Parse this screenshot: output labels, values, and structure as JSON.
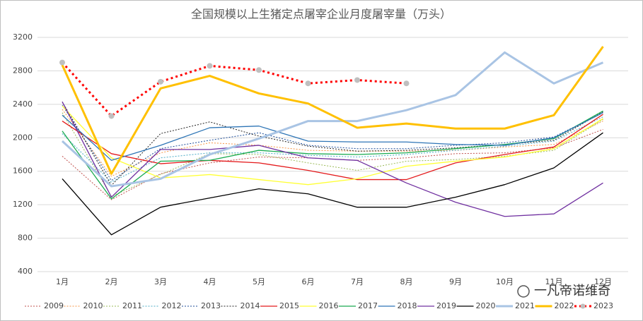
{
  "chart_data": {
    "type": "line",
    "title": "全国规模以上生猪定点屠宰企业月度屠宰量（万头）",
    "watermark": "一凡帝诺维奇",
    "categories": [
      "1月",
      "2月",
      "3月",
      "4月",
      "5月",
      "6月",
      "7月",
      "8月",
      "9月",
      "10月",
      "11月",
      "12月"
    ],
    "ylim": [
      400,
      3200
    ],
    "yticks": [
      400,
      800,
      1200,
      1600,
      2000,
      2400,
      2800,
      3200
    ],
    "grid": true,
    "legend": "bottom",
    "series": [
      {
        "name": "2009",
        "color": "#c0504d",
        "dash": true,
        "width": 1,
        "values": [
          1780,
          1260,
          1570,
          1700,
          1770,
          1760,
          1730,
          1760,
          1810,
          1820,
          1880,
          2100
        ]
      },
      {
        "name": "2010",
        "color": "#f79646",
        "dash": true,
        "width": 1,
        "values": [
          2340,
          1540,
          1820,
          1940,
          1910,
          1850,
          1840,
          1840,
          1850,
          1890,
          1920,
          2200
        ]
      },
      {
        "name": "2011",
        "color": "#9bbb59",
        "dash": true,
        "width": 1,
        "values": [
          2300,
          1300,
          1560,
          1810,
          1800,
          1700,
          1610,
          1720,
          1740,
          1780,
          1850,
          2220
        ]
      },
      {
        "name": "2012",
        "color": "#4bacc6",
        "dash": true,
        "width": 1,
        "values": [
          2050,
          1470,
          1760,
          1820,
          1820,
          1790,
          1770,
          1800,
          1850,
          1900,
          1960,
          2250
        ]
      },
      {
        "name": "2013",
        "color": "#1f4e9a",
        "dash": true,
        "width": 1,
        "values": [
          2390,
          1490,
          1870,
          1970,
          2060,
          1910,
          1870,
          1870,
          1910,
          1940,
          2010,
          2300
        ]
      },
      {
        "name": "2014",
        "color": "#222222",
        "dash": true,
        "width": 1,
        "values": [
          2430,
          1430,
          2050,
          2190,
          2020,
          1900,
          1840,
          1850,
          1880,
          1920,
          1970,
          2310
        ]
      },
      {
        "name": "2015",
        "color": "#e41a1c",
        "dash": false,
        "width": 1.3,
        "values": [
          2200,
          1810,
          1690,
          1730,
          1700,
          1610,
          1500,
          1500,
          1700,
          1800,
          1890,
          2280
        ]
      },
      {
        "name": "2016",
        "color": "#ffff33",
        "dash": false,
        "width": 1.3,
        "values": [
          2380,
          1760,
          1520,
          1560,
          1500,
          1440,
          1510,
          1660,
          1720,
          1770,
          1870,
          2230
        ]
      },
      {
        "name": "2017",
        "color": "#1aab50",
        "dash": false,
        "width": 1.3,
        "values": [
          2080,
          1270,
          1720,
          1730,
          1850,
          1810,
          1800,
          1820,
          1870,
          1920,
          1990,
          2320
        ]
      },
      {
        "name": "2018",
        "color": "#2e75b6",
        "dash": false,
        "width": 1.3,
        "values": [
          2270,
          1730,
          1910,
          2120,
          2140,
          1960,
          1950,
          1950,
          1920,
          1910,
          2000,
          2300
        ]
      },
      {
        "name": "2019",
        "color": "#7030a0",
        "dash": false,
        "width": 1.3,
        "values": [
          2430,
          1290,
          1860,
          1860,
          1910,
          1760,
          1730,
          1460,
          1230,
          1060,
          1090,
          1460
        ]
      },
      {
        "name": "2020",
        "color": "#000000",
        "dash": false,
        "width": 1.3,
        "values": [
          1510,
          840,
          1170,
          1280,
          1390,
          1330,
          1170,
          1170,
          1290,
          1440,
          1640,
          2060
        ]
      },
      {
        "name": "2021",
        "color": "#a9c4e4",
        "dash": false,
        "width": 3,
        "values": [
          1960,
          1420,
          1510,
          1800,
          1990,
          2200,
          2200,
          2330,
          2510,
          3020,
          2650,
          2900
        ]
      },
      {
        "name": "2022",
        "color": "#ffc000",
        "dash": false,
        "width": 3,
        "values": [
          2870,
          1570,
          2590,
          2740,
          2530,
          2410,
          2120,
          2170,
          2110,
          2110,
          2270,
          3090
        ]
      },
      {
        "name": "2023",
        "color": "#ff0000",
        "dash": true,
        "width": 3,
        "marker": "#bfbfbf",
        "values": [
          2900,
          2260,
          2670,
          2860,
          2810,
          2650,
          2690,
          2650,
          null,
          null,
          null,
          null
        ]
      }
    ]
  }
}
